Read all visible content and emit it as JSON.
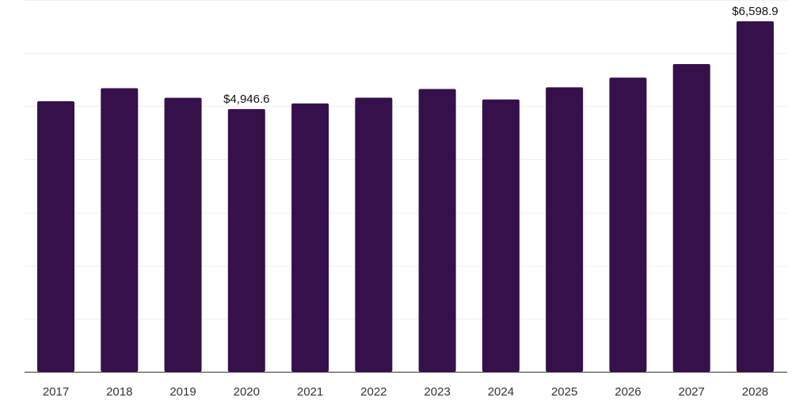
{
  "colors": {
    "bar": "#36104a",
    "grid": "#f0f0f0",
    "axis": "#333333"
  },
  "chart_data": {
    "type": "bar",
    "title": "",
    "xlabel": "",
    "ylabel": "",
    "categories": [
      "2017",
      "2018",
      "2019",
      "2020",
      "2021",
      "2022",
      "2023",
      "2024",
      "2025",
      "2026",
      "2027",
      "2028"
    ],
    "values": [
      5094,
      5340,
      5158,
      4946.6,
      5052,
      5160,
      5325,
      5128,
      5357,
      5538,
      5793,
      6598.9
    ],
    "ylim": [
      0,
      7000
    ],
    "grid_step": 1000,
    "grid": true,
    "labels": [
      {
        "index": 3,
        "text": "$4,946.6"
      },
      {
        "index": 11,
        "text": "$6,598.9"
      }
    ]
  }
}
